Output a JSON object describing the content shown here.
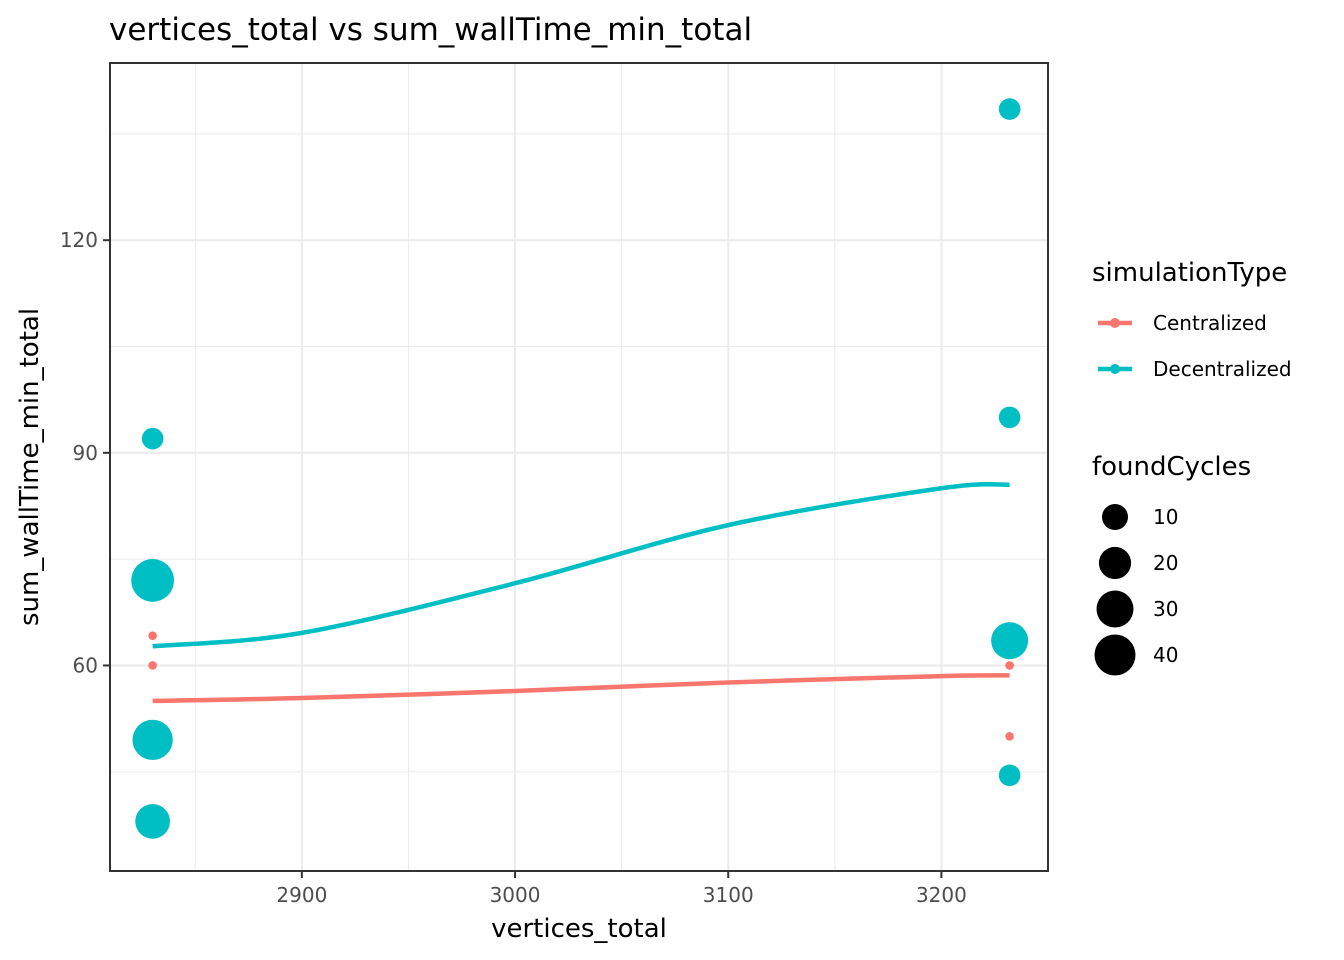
{
  "chart_data": {
    "type": "scatter",
    "title": "vertices_total  vs  sum_wallTime_min_total",
    "xlabel": "vertices_total",
    "ylabel": "sum_wallTime_min_total",
    "xlim": [
      2810,
      3250
    ],
    "ylim": [
      31,
      145
    ],
    "x_ticks": [
      2900,
      3000,
      3100,
      3200
    ],
    "y_ticks": [
      60,
      90,
      120
    ],
    "grid": true,
    "legend_position": "right",
    "colors": {
      "Centralized": "#F8766D",
      "Decentralized": "#00BFC4"
    },
    "color_legend": {
      "title": "simulationType",
      "entries": [
        "Centralized",
        "Decentralized"
      ]
    },
    "size_legend": {
      "title": "foundCycles",
      "entries": [
        10,
        20,
        30,
        40
      ],
      "labels": [
        "10",
        "20",
        "30",
        "40"
      ]
    },
    "series": [
      {
        "name": "Centralized",
        "points": [
          {
            "x": 2830,
            "y": 36.5,
            "size": 1
          },
          {
            "x": 2830,
            "y": 60,
            "size": 1
          },
          {
            "x": 2830,
            "y": 64.2,
            "size": 1
          },
          {
            "x": 3232,
            "y": 50,
            "size": 1
          },
          {
            "x": 3232,
            "y": 60,
            "size": 1
          },
          {
            "x": 3232,
            "y": 61.5,
            "size": 1
          }
        ],
        "trend": [
          {
            "x": 2830,
            "y": 55.0
          },
          {
            "x": 2900,
            "y": 55.4
          },
          {
            "x": 3000,
            "y": 56.4
          },
          {
            "x": 3100,
            "y": 57.6
          },
          {
            "x": 3200,
            "y": 58.5
          },
          {
            "x": 3232,
            "y": 58.6
          }
        ]
      },
      {
        "name": "Decentralized",
        "points": [
          {
            "x": 2830,
            "y": 92,
            "size": 5
          },
          {
            "x": 2830,
            "y": 72,
            "size": 45
          },
          {
            "x": 2830,
            "y": 49.5,
            "size": 38
          },
          {
            "x": 2830,
            "y": 38,
            "size": 25
          },
          {
            "x": 3232,
            "y": 138.5,
            "size": 5
          },
          {
            "x": 3232,
            "y": 95,
            "size": 5
          },
          {
            "x": 3232,
            "y": 63.5,
            "size": 30
          },
          {
            "x": 3232,
            "y": 44.5,
            "size": 5
          }
        ],
        "trend": [
          {
            "x": 2830,
            "y": 62.7
          },
          {
            "x": 2900,
            "y": 64.6
          },
          {
            "x": 3000,
            "y": 71.6
          },
          {
            "x": 3100,
            "y": 79.8
          },
          {
            "x": 3200,
            "y": 85.0
          },
          {
            "x": 3232,
            "y": 85.5
          }
        ]
      }
    ]
  }
}
